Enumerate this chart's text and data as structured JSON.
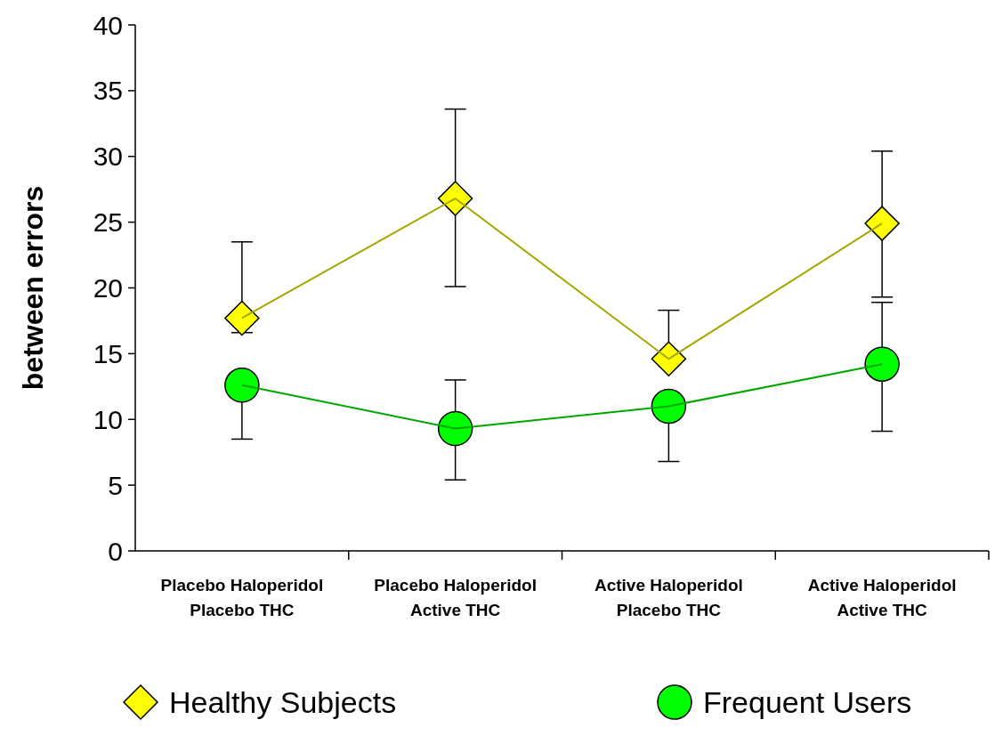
{
  "chart_data": {
    "type": "line",
    "ylabel": "between errors",
    "categories": [
      "Placebo Haloperidol\nPlacebo THC",
      "Placebo Haloperidol\nActive THC",
      "Active Haloperidol\nPlacebo THC",
      "Active Haloperidol\nActive THC"
    ],
    "series": [
      {
        "name": "Healthy Subjects",
        "color": "#ffff00",
        "marker": "diamond",
        "values": [
          17.7,
          26.8,
          14.6,
          24.9
        ],
        "errors": [
          [
            16.6,
            23.5
          ],
          [
            20.1,
            33.6
          ],
          [
            14.6,
            18.3
          ],
          [
            19.3,
            30.4
          ]
        ]
      },
      {
        "name": "Frequent Users",
        "color": "#00ff00",
        "marker": "circle",
        "values": [
          12.6,
          9.3,
          11.0,
          14.2
        ],
        "errors": [
          [
            8.5,
            12.6
          ],
          [
            5.4,
            13.0
          ],
          [
            6.8,
            11.0
          ],
          [
            9.1,
            18.9
          ]
        ]
      }
    ],
    "ylim": [
      0,
      40
    ],
    "yticks": [
      0,
      5,
      10,
      15,
      20,
      25,
      30,
      35,
      40
    ],
    "grid": false,
    "legend": "bottom"
  }
}
